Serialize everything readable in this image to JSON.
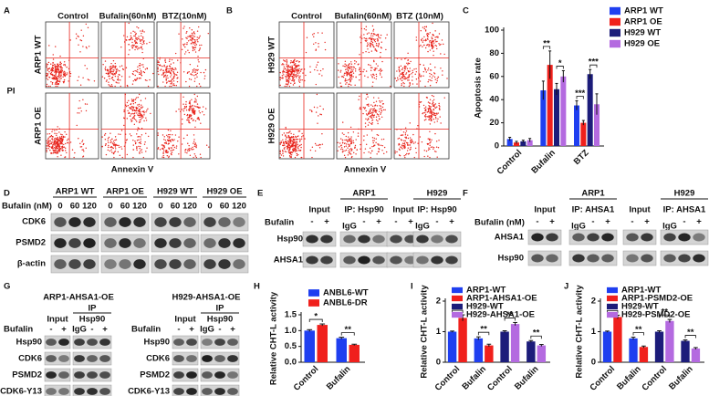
{
  "panels": {
    "A": {
      "label": "A",
      "columns": [
        "Control",
        "Bufalin(60nM)",
        "BTZ(10nM)"
      ],
      "rows": [
        "ARP1 WT",
        "ARP1 OE"
      ],
      "y_label": "PI",
      "x_label": "Annexin V"
    },
    "B": {
      "label": "B",
      "columns": [
        "Control",
        "Bufalin(60nM)",
        "BTZ (10nM)"
      ],
      "rows": [
        "H929 WT",
        "H929 OE"
      ],
      "x_label": "Annexin V"
    },
    "D": {
      "label": "D",
      "groups": [
        "ARP1 WT",
        "ARP1 OE",
        "H929 WT",
        "H929 OE"
      ],
      "treatment": "Bufalin (nM)",
      "doses": [
        "0",
        "60",
        "120"
      ],
      "rows": [
        "CDK6",
        "PSMD2",
        "β-actin"
      ]
    },
    "E": {
      "label": "E",
      "treatment": "Bufalin",
      "groups": [
        {
          "sub": "Input",
          "lanes": [
            "-",
            "+"
          ]
        },
        {
          "top": "ARP1",
          "sub": "IP: Hsp90",
          "lanes": [
            "IgG",
            "-",
            "+"
          ]
        },
        {
          "sub": "Input",
          "lanes": [
            "-",
            "+"
          ]
        },
        {
          "top": "H929",
          "sub": "IP: Hsp90",
          "lanes": [
            "IgG",
            "-",
            "+"
          ]
        }
      ],
      "rows": [
        "Hsp90",
        "AHSA1"
      ]
    },
    "F": {
      "label": "F",
      "treatment": "Bufalin (nM)",
      "groups": [
        {
          "sub": "Input",
          "lanes": [
            "-",
            "+"
          ]
        },
        {
          "top": "ARP1",
          "sub": "IP: AHSA1",
          "lanes": [
            "IgG",
            "-",
            "+"
          ]
        },
        {
          "sub": "Input",
          "lanes": [
            "-",
            "+"
          ]
        },
        {
          "top": "H929",
          "sub": "IP: AHSA1",
          "lanes": [
            "IgG",
            "-",
            "+"
          ]
        }
      ],
      "rows": [
        "AHSA1",
        "Hsp90"
      ]
    },
    "G": {
      "label": "G",
      "blots": [
        {
          "title": "ARP1-AHSA1-OE",
          "ip": "IP",
          "input": "Input",
          "ip_antibody": "Hsp90",
          "treatment": "Bufalin",
          "input_lanes": [
            "-",
            "+"
          ],
          "ip_lanes": [
            "IgG",
            "-",
            "+"
          ],
          "rows": [
            "Hsp90",
            "CDK6",
            "PSMD2",
            "CDK6-Y13"
          ]
        },
        {
          "title": "H929-AHSA1-OE",
          "ip": "IP",
          "input": "Input",
          "ip_antibody": "Hsp90",
          "treatment": "Bufalin",
          "input_lanes": [
            "-",
            "+"
          ],
          "ip_lanes": [
            "IgG",
            "-",
            "+"
          ],
          "rows": [
            "Hsp90",
            "CDK6",
            "PSMD2",
            "CDK6-Y13"
          ]
        }
      ]
    }
  },
  "chart_data": [
    {
      "type": "bar",
      "label": "C",
      "y_label": "Apoptosis rate",
      "categories": [
        "Control",
        "Bufalin",
        "BTZ"
      ],
      "series": [
        {
          "name": "ARP1 WT",
          "color": "#1f3ff0",
          "values": [
            6,
            48,
            35
          ],
          "errors": [
            1.5,
            8,
            4
          ]
        },
        {
          "name": "ARP1 OE",
          "color": "#f0201c",
          "values": [
            3,
            70,
            20
          ],
          "errors": [
            1,
            12,
            2
          ]
        },
        {
          "name": "H929 WT",
          "color": "#1c1c7a",
          "values": [
            4,
            49,
            62
          ],
          "errors": [
            1,
            5,
            4
          ]
        },
        {
          "name": "H929 OE",
          "color": "#b46ae0",
          "values": [
            5,
            60,
            36
          ],
          "errors": [
            1.5,
            5,
            9
          ]
        }
      ],
      "ylim": [
        0,
        100
      ],
      "yticks": [
        0,
        20,
        40,
        60,
        80,
        100
      ],
      "annotations": [
        "**",
        "*",
        "***",
        "***"
      ]
    },
    {
      "type": "bar",
      "label": "H",
      "y_label": "Relative CHT-L activity",
      "categories": [
        "Control",
        "Bufalin"
      ],
      "series": [
        {
          "name": "ANBL6-WT",
          "color": "#1f3ff0",
          "values": [
            1.0,
            0.76
          ],
          "errors": [
            0.03,
            0.03
          ]
        },
        {
          "name": "ANBL6-DR",
          "color": "#f0201c",
          "values": [
            1.18,
            0.55
          ],
          "errors": [
            0.03,
            0.02
          ]
        }
      ],
      "ylim": [
        0,
        1.5
      ],
      "yticks": [
        {
          "value": 0,
          "label": "0.0"
        },
        0.5,
        {
          "value": 1,
          "label": "1.0"
        },
        1.5
      ],
      "annotations": [
        "*",
        "**"
      ]
    },
    {
      "type": "bar",
      "label": "I",
      "y_label": "Relative CHT-L activity",
      "categories": [
        "Control",
        "Bufalin",
        "Control",
        "Bufalin"
      ],
      "series": [
        {
          "name": "ARP1-WT",
          "color": "#1f3ff0",
          "values": [
            1.0,
            0.78,
            null,
            null
          ],
          "errors": [
            0.02,
            0.05,
            null,
            null
          ]
        },
        {
          "name": "ARP1-AHSA1-OE",
          "color": "#f0201c",
          "values": [
            1.45,
            0.55,
            null,
            null
          ],
          "errors": [
            0.1,
            0.04,
            null,
            null
          ]
        },
        {
          "name": "H929-WT",
          "color": "#1c1c7a",
          "values": [
            null,
            null,
            1.0,
            0.68
          ],
          "errors": [
            null,
            null,
            0.03,
            0.03
          ]
        },
        {
          "name": "H929-AHSA1-OE",
          "color": "#b46ae0",
          "values": [
            null,
            null,
            1.25,
            0.55
          ],
          "errors": [
            null,
            null,
            0.05,
            0.03
          ]
        }
      ],
      "ylim": [
        0,
        2
      ],
      "yticks": [
        0,
        1,
        2
      ],
      "annotations": [
        "**",
        "**",
        "**",
        "**"
      ]
    },
    {
      "type": "bar",
      "label": "J",
      "y_label": "Relative CHT-L activity",
      "categories": [
        "Control",
        "Bufalin",
        "Control",
        "Bufalin"
      ],
      "series": [
        {
          "name": "ARP1-WT",
          "color": "#1f3ff0",
          "values": [
            1.0,
            0.78,
            null,
            null
          ],
          "errors": [
            0.02,
            0.04,
            null,
            null
          ]
        },
        {
          "name": "ARP1-PSMD2-OE",
          "color": "#f0201c",
          "values": [
            1.48,
            0.5,
            null,
            null
          ],
          "errors": [
            0.06,
            0.03,
            null,
            null
          ]
        },
        {
          "name": "H929-WT",
          "color": "#1c1c7a",
          "values": [
            null,
            null,
            1.0,
            0.7
          ],
          "errors": [
            null,
            null,
            0.03,
            0.03
          ]
        },
        {
          "name": "H929-PSMD2-OE",
          "color": "#b46ae0",
          "values": [
            null,
            null,
            1.35,
            0.45
          ],
          "errors": [
            null,
            null,
            0.05,
            0.03
          ]
        }
      ],
      "ylim": [
        0,
        2
      ],
      "yticks": [
        0,
        1,
        2
      ],
      "annotations": [
        "**",
        "**",
        "**",
        "**"
      ]
    }
  ]
}
